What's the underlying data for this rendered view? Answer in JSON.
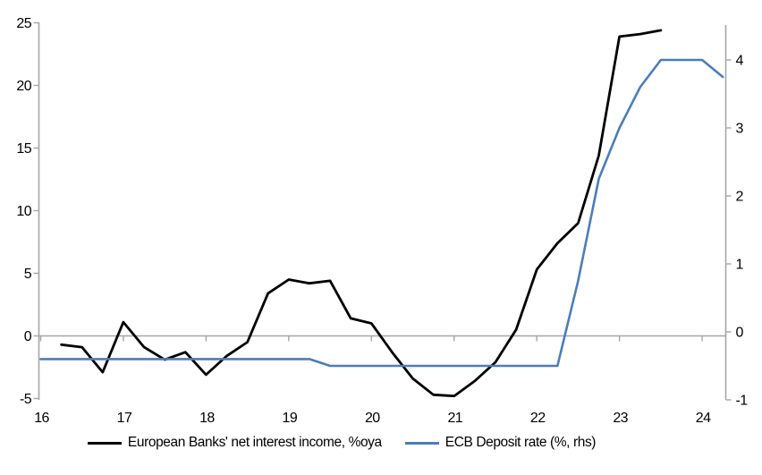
{
  "chart_data": {
    "type": "line",
    "title": "",
    "x_tick_labels": [
      "16",
      "17",
      "18",
      "19",
      "20",
      "21",
      "22",
      "23",
      "24"
    ],
    "x_tick_values": [
      16,
      17,
      18,
      19,
      20,
      21,
      22,
      23,
      24
    ],
    "x_range": [
      16,
      24.3
    ],
    "left_axis": {
      "ticks": [
        -5,
        0,
        5,
        10,
        15,
        20,
        25
      ],
      "tick_labels": [
        "-5",
        "0",
        "5",
        "10",
        "15",
        "20",
        "25"
      ],
      "range": [
        -5,
        25.1
      ]
    },
    "right_axis": {
      "ticks": [
        -1,
        0,
        1,
        2,
        3,
        4
      ],
      "tick_labels": [
        "-1",
        "0",
        "1",
        "2",
        "3",
        "4"
      ],
      "range": [
        -1,
        4.55
      ]
    },
    "grid": "zero-line-only",
    "legend_position": "bottom",
    "series": [
      {
        "name": "European Banks' net interest income, %oya",
        "axis": "left",
        "color": "#000000",
        "x": [
          16.25,
          16.5,
          16.75,
          17.0,
          17.25,
          17.5,
          17.75,
          18.0,
          18.25,
          18.5,
          18.75,
          19.0,
          19.25,
          19.5,
          19.75,
          20.0,
          20.25,
          20.5,
          20.75,
          21.0,
          21.25,
          21.5,
          21.75,
          22.0,
          22.25,
          22.5,
          22.75,
          23.0,
          23.25,
          23.5
        ],
        "values": [
          -0.7,
          -0.9,
          -2.9,
          1.1,
          -0.9,
          -1.9,
          -1.3,
          -3.1,
          -1.6,
          -0.5,
          3.4,
          4.5,
          4.2,
          4.4,
          1.4,
          1.0,
          -1.3,
          -3.4,
          -4.7,
          -4.8,
          -3.6,
          -2.1,
          0.5,
          5.3,
          7.4,
          9.0,
          14.4,
          23.9,
          24.1,
          24.4
        ]
      },
      {
        "name": "ECB Deposit rate (%, rhs)",
        "axis": "right",
        "color": "#4a7eba",
        "x": [
          16.0,
          16.25,
          16.5,
          16.75,
          17.0,
          17.25,
          17.5,
          17.75,
          18.0,
          18.25,
          18.5,
          18.75,
          19.0,
          19.25,
          19.5,
          19.75,
          20.0,
          20.25,
          20.5,
          20.75,
          21.0,
          21.25,
          21.5,
          21.75,
          22.0,
          22.25,
          22.5,
          22.75,
          23.0,
          23.25,
          23.5,
          23.75,
          24.0,
          24.25
        ],
        "values": [
          -0.4,
          -0.4,
          -0.4,
          -0.4,
          -0.4,
          -0.4,
          -0.4,
          -0.4,
          -0.4,
          -0.4,
          -0.4,
          -0.4,
          -0.4,
          -0.4,
          -0.5,
          -0.5,
          -0.5,
          -0.5,
          -0.5,
          -0.5,
          -0.5,
          -0.5,
          -0.5,
          -0.5,
          -0.5,
          -0.5,
          0.75,
          2.25,
          3.0,
          3.6,
          4.0,
          4.0,
          4.0,
          3.75
        ]
      }
    ]
  },
  "legend": {
    "series1": "European Banks' net interest income, %oya",
    "series2": "ECB Deposit rate (%, rhs)"
  },
  "colors": {
    "nii_line": "#000000",
    "ecb_line": "#4a7eba",
    "axis": "#a6a6a6",
    "text": "#000000"
  }
}
